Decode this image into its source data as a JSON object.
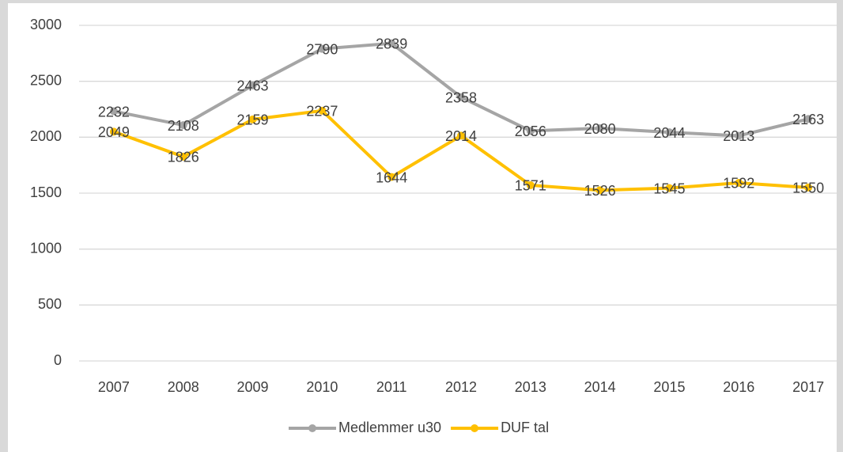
{
  "chart_data": {
    "type": "line",
    "categories": [
      "2007",
      "2008",
      "2009",
      "2010",
      "2011",
      "2012",
      "2013",
      "2014",
      "2015",
      "2016",
      "2017"
    ],
    "series": [
      {
        "name": "Medlemmer u30",
        "color": "#a5a5a5",
        "values": [
          2232,
          2108,
          2463,
          2790,
          2839,
          2358,
          2056,
          2080,
          2044,
          2013,
          2163
        ]
      },
      {
        "name": "DUF tal",
        "color": "#ffc000",
        "values": [
          2049,
          1826,
          2159,
          2237,
          1644,
          2014,
          1571,
          1526,
          1545,
          1592,
          1550
        ]
      }
    ],
    "ylim": [
      0,
      3000
    ],
    "yticks": [
      0,
      500,
      1000,
      1500,
      2000,
      2500,
      3000
    ],
    "grid": true,
    "legend": "bottom"
  }
}
